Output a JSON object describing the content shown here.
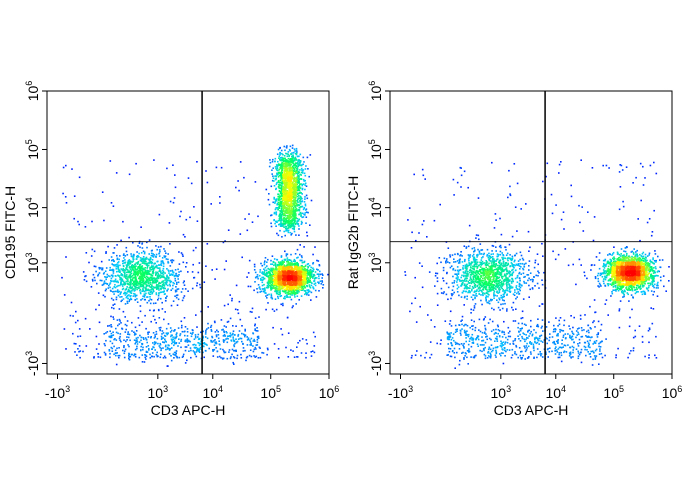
{
  "chart_data": [
    {
      "type": "scatter",
      "subtype": "flow-cytometry-density-dot-plot",
      "xlabel": "CD3 APC-H",
      "ylabel": "CD195 FITC-H",
      "x_scale": "biexponential",
      "y_scale": "biexponential",
      "x_ticks": [
        "-10^3",
        "10^3",
        "10^4",
        "10^5",
        "10^6"
      ],
      "y_ticks": [
        "-10^3",
        "10^3",
        "10^4",
        "10^5",
        "10^6"
      ],
      "gate": {
        "x_threshold": 6500,
        "y_threshold": 2500
      },
      "populations": [
        {
          "x_center": 450,
          "y_center": 550,
          "spread": "broad",
          "density": "medium"
        },
        {
          "x_center": 200000,
          "y_center": 500,
          "spread": "compact",
          "density": "high"
        },
        {
          "x_center": 200000,
          "y_range": [
            5000,
            80000
          ],
          "spread": "vertical",
          "density": "high"
        }
      ],
      "grid": false,
      "colormap": [
        "#0000ff",
        "#00c8ff",
        "#00ff66",
        "#ffff00",
        "#ff8000",
        "#ff0000"
      ]
    },
    {
      "type": "scatter",
      "subtype": "flow-cytometry-density-dot-plot",
      "xlabel": "CD3 APC-H",
      "ylabel": "Rat IgG2b FITC-H",
      "x_scale": "biexponential",
      "y_scale": "biexponential",
      "x_ticks": [
        "-10^3",
        "10^3",
        "10^4",
        "10^5",
        "10^6"
      ],
      "y_ticks": [
        "-10^3",
        "10^3",
        "10^4",
        "10^5",
        "10^6"
      ],
      "gate": {
        "x_threshold": 6500,
        "y_threshold": 2500
      },
      "populations": [
        {
          "x_center": 500,
          "y_center": 550,
          "spread": "broad",
          "density": "medium"
        },
        {
          "x_center": 180000,
          "y_center": 650,
          "spread": "compact",
          "density": "high"
        }
      ],
      "grid": false,
      "colormap": [
        "#0000ff",
        "#00c8ff",
        "#00ff66",
        "#ffff00",
        "#ff8000",
        "#ff0000"
      ]
    }
  ]
}
